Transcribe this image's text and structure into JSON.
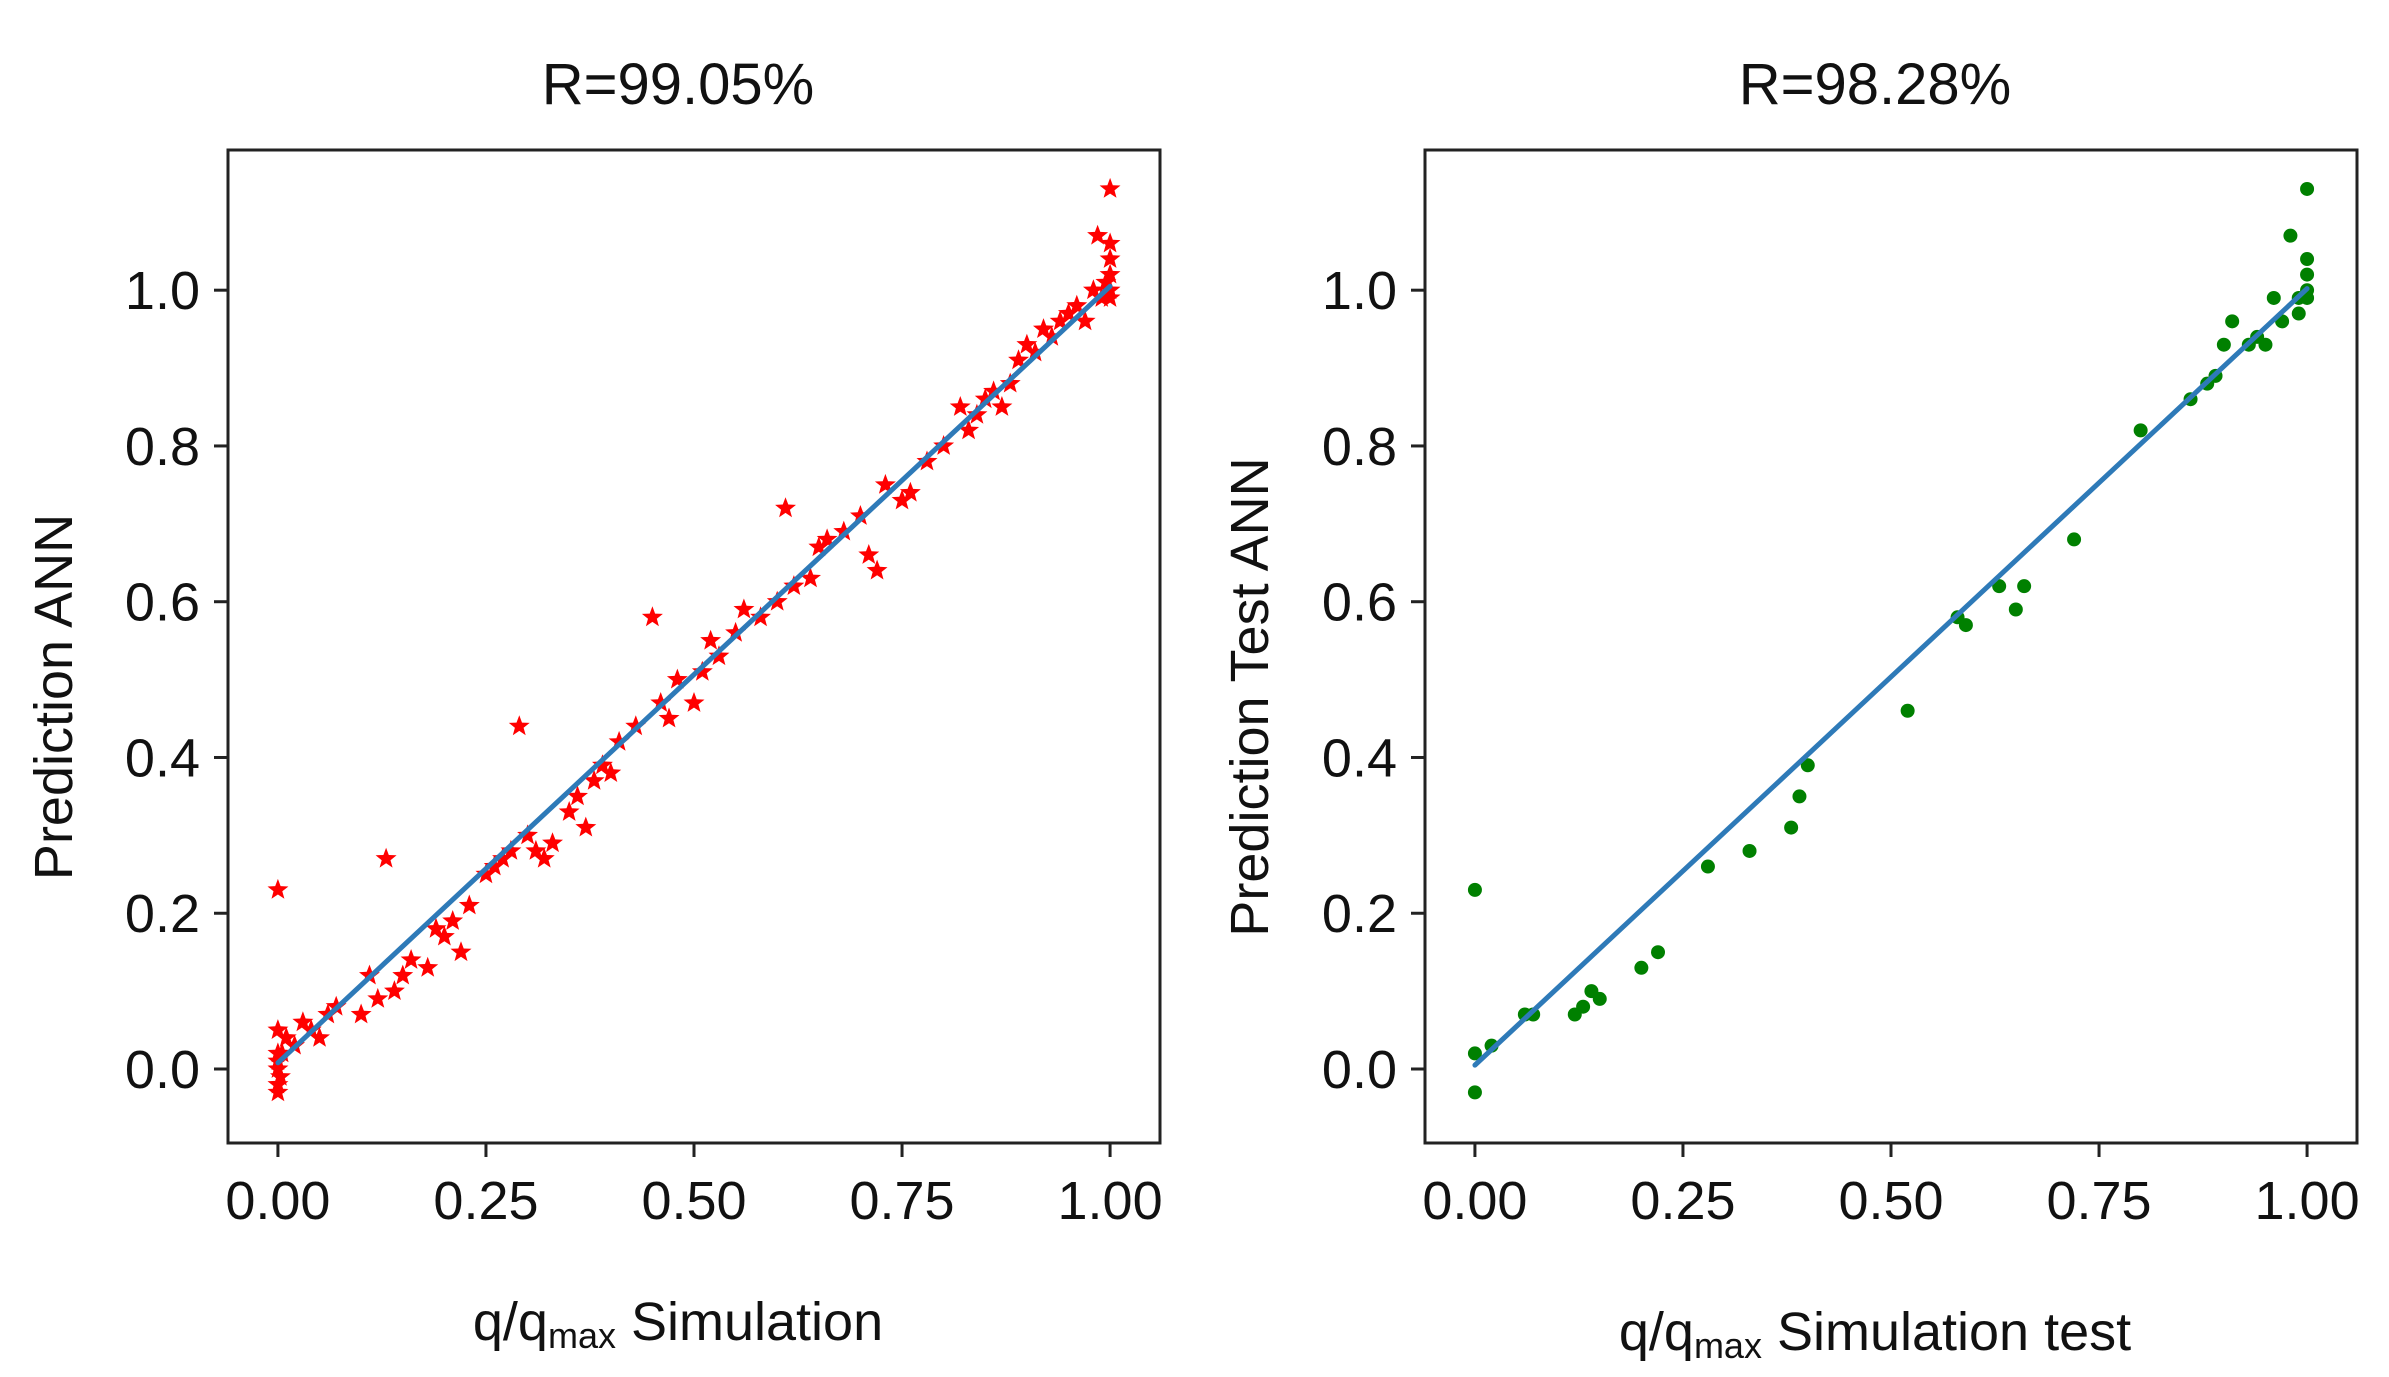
{
  "chart_data": [
    {
      "type": "scatter",
      "title": "R=99.05%",
      "xlabel": {
        "prefix": "q/q",
        "subscript": "max",
        "suffix": " Simulation"
      },
      "ylabel": "Prediction ANN",
      "xlim": [
        -0.06,
        1.06
      ],
      "ylim": [
        -0.095,
        1.18
      ],
      "xticks": [
        0.0,
        0.25,
        0.5,
        0.75,
        1.0
      ],
      "xtick_labels": [
        "0.00",
        "0.25",
        "0.50",
        "0.75",
        "1.00"
      ],
      "yticks": [
        0.0,
        0.2,
        0.4,
        0.6,
        0.8,
        1.0
      ],
      "ytick_labels": [
        "0.0",
        "0.2",
        "0.4",
        "0.6",
        "0.8",
        "1.0"
      ],
      "marker": "star",
      "marker_color": "#ff0000",
      "line_color": "#2e7ab8",
      "fit_line": {
        "x": [
          0.0,
          1.0
        ],
        "y": [
          0.008,
          1.005
        ]
      },
      "x": [
        0.0,
        0.0,
        0.0,
        0.0,
        0.0,
        0.0,
        0.0,
        0.003,
        0.005,
        0.01,
        0.02,
        0.03,
        0.04,
        0.05,
        0.06,
        0.07,
        0.1,
        0.11,
        0.12,
        0.13,
        0.14,
        0.15,
        0.16,
        0.18,
        0.19,
        0.2,
        0.21,
        0.22,
        0.23,
        0.25,
        0.26,
        0.27,
        0.28,
        0.29,
        0.3,
        0.31,
        0.32,
        0.33,
        0.35,
        0.36,
        0.37,
        0.38,
        0.39,
        0.4,
        0.41,
        0.43,
        0.45,
        0.46,
        0.47,
        0.48,
        0.5,
        0.51,
        0.52,
        0.53,
        0.55,
        0.56,
        0.58,
        0.6,
        0.61,
        0.62,
        0.64,
        0.65,
        0.66,
        0.68,
        0.7,
        0.71,
        0.72,
        0.73,
        0.75,
        0.76,
        0.78,
        0.8,
        0.82,
        0.83,
        0.84,
        0.85,
        0.86,
        0.87,
        0.88,
        0.89,
        0.9,
        0.91,
        0.92,
        0.93,
        0.94,
        0.95,
        0.96,
        0.97,
        0.98,
        0.985,
        0.99,
        0.995,
        1.0,
        1.0,
        1.0,
        1.0,
        1.0,
        1.0
      ],
      "y": [
        0.23,
        0.05,
        0.02,
        0.0,
        -0.02,
        -0.03,
        0.01,
        -0.01,
        0.02,
        0.04,
        0.03,
        0.06,
        0.05,
        0.04,
        0.07,
        0.08,
        0.07,
        0.12,
        0.09,
        0.27,
        0.1,
        0.12,
        0.14,
        0.13,
        0.18,
        0.17,
        0.19,
        0.15,
        0.21,
        0.25,
        0.26,
        0.27,
        0.28,
        0.44,
        0.3,
        0.28,
        0.27,
        0.29,
        0.33,
        0.35,
        0.31,
        0.37,
        0.39,
        0.38,
        0.42,
        0.44,
        0.58,
        0.47,
        0.45,
        0.5,
        0.47,
        0.51,
        0.55,
        0.53,
        0.56,
        0.59,
        0.58,
        0.6,
        0.72,
        0.62,
        0.63,
        0.67,
        0.68,
        0.69,
        0.71,
        0.66,
        0.64,
        0.75,
        0.73,
        0.74,
        0.78,
        0.8,
        0.85,
        0.82,
        0.84,
        0.86,
        0.87,
        0.85,
        0.88,
        0.91,
        0.93,
        0.92,
        0.95,
        0.94,
        0.96,
        0.97,
        0.98,
        0.96,
        1.0,
        1.07,
        0.99,
        1.01,
        1.13,
        1.06,
        1.04,
        1.02,
        0.99,
        1.0
      ]
    },
    {
      "type": "scatter",
      "title": "R=98.28%",
      "xlabel": {
        "prefix": "q/q",
        "subscript": "max",
        "suffix": " Simulation test"
      },
      "ylabel": "Prediction Test ANN",
      "xlim": [
        -0.06,
        1.06
      ],
      "ylim": [
        -0.095,
        1.18
      ],
      "xticks": [
        0.0,
        0.25,
        0.5,
        0.75,
        1.0
      ],
      "xtick_labels": [
        "0.00",
        "0.25",
        "0.50",
        "0.75",
        "1.00"
      ],
      "yticks": [
        0.0,
        0.2,
        0.4,
        0.6,
        0.8,
        1.0
      ],
      "ytick_labels": [
        "0.0",
        "0.2",
        "0.4",
        "0.6",
        "0.8",
        "1.0"
      ],
      "marker": "dot",
      "marker_color": "#008000",
      "line_color": "#2e7ab8",
      "fit_line": {
        "x": [
          0.0,
          1.0
        ],
        "y": [
          0.005,
          1.002
        ]
      },
      "x": [
        0.0,
        0.0,
        0.0,
        0.02,
        0.06,
        0.07,
        0.12,
        0.13,
        0.14,
        0.15,
        0.2,
        0.22,
        0.28,
        0.33,
        0.38,
        0.39,
        0.4,
        0.52,
        0.58,
        0.59,
        0.63,
        0.65,
        0.66,
        0.72,
        0.8,
        0.86,
        0.88,
        0.89,
        0.9,
        0.91,
        0.93,
        0.94,
        0.95,
        0.96,
        0.97,
        0.98,
        0.99,
        0.99,
        1.0,
        1.0,
        1.0,
        1.0,
        1.0
      ],
      "y": [
        0.23,
        0.02,
        -0.03,
        0.03,
        0.07,
        0.07,
        0.07,
        0.08,
        0.1,
        0.09,
        0.13,
        0.15,
        0.26,
        0.28,
        0.31,
        0.35,
        0.39,
        0.46,
        0.58,
        0.57,
        0.62,
        0.59,
        0.62,
        0.68,
        0.82,
        0.86,
        0.88,
        0.89,
        0.93,
        0.96,
        0.93,
        0.94,
        0.93,
        0.99,
        0.96,
        1.07,
        0.97,
        0.99,
        1.13,
        1.04,
        1.02,
        1.0,
        0.99
      ]
    }
  ]
}
